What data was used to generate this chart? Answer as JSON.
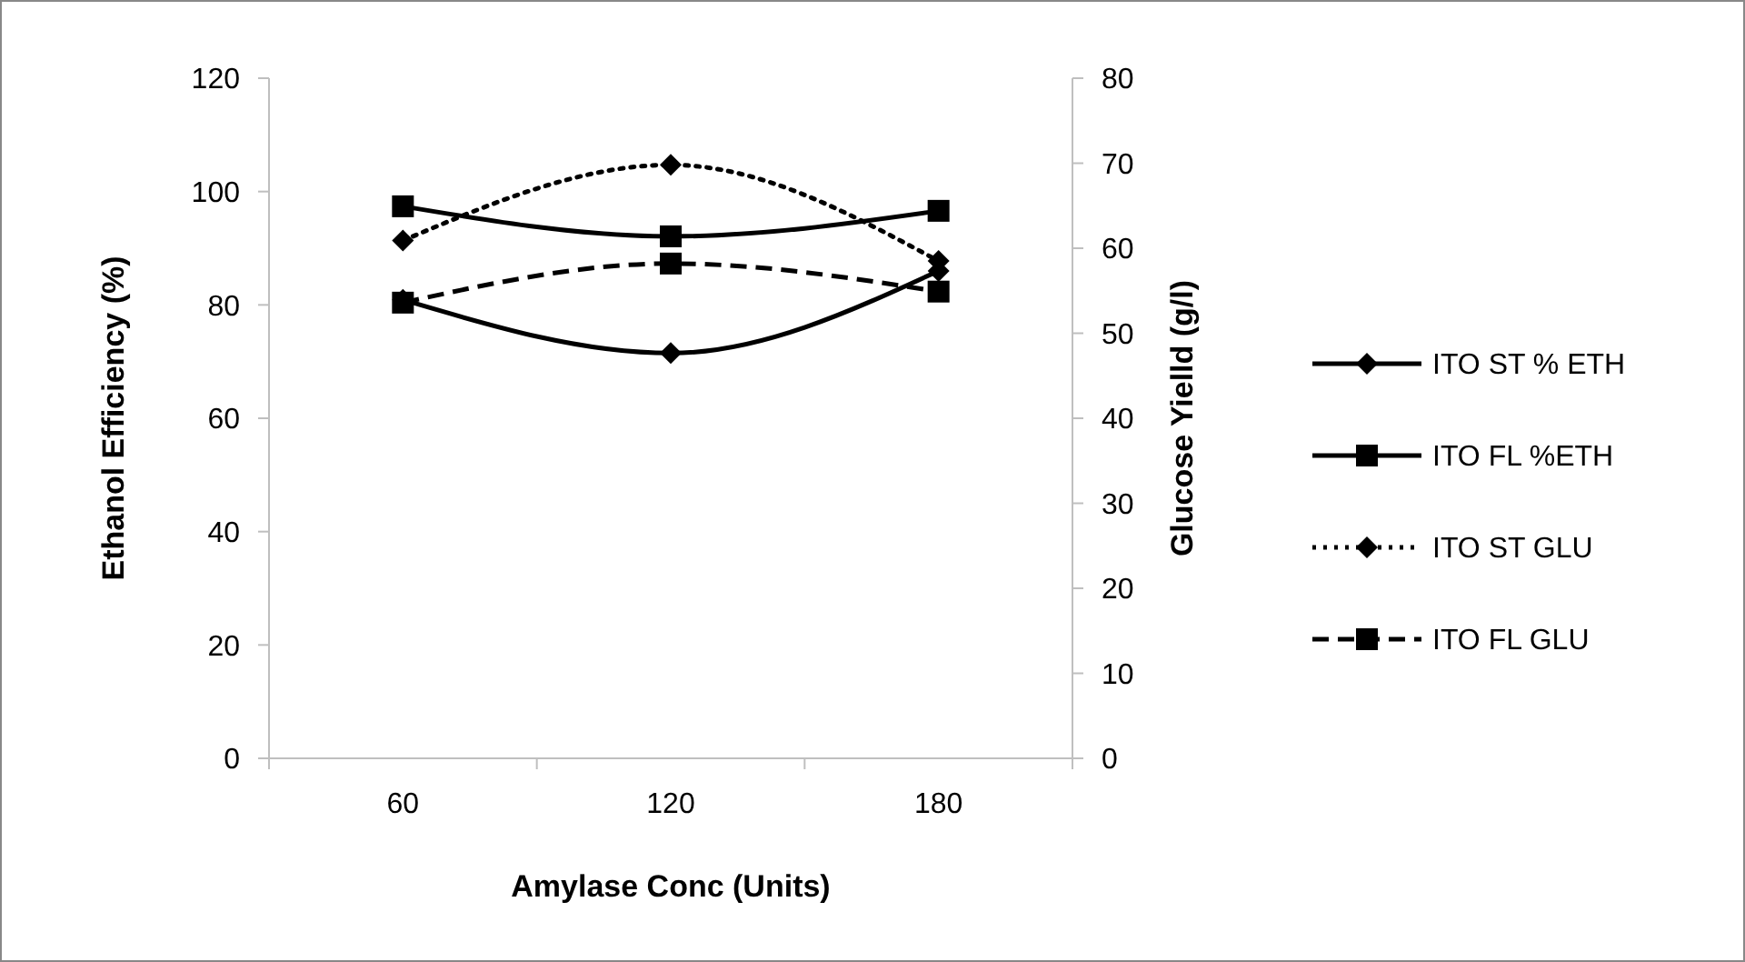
{
  "chart_data": {
    "type": "line",
    "xlabel": "Amylase Conc (Units)",
    "ylabel": "Ethanol Efficiency (%)",
    "y2label": "Glucose Yielld (g/l)",
    "categories": [
      "60",
      "120",
      "180"
    ],
    "series": [
      {
        "name": "ITO ST % ETH",
        "color": "#000000",
        "values": [
          80.9,
          71.5,
          86
        ],
        "marker": "diamond",
        "line_style": "solid"
      },
      {
        "name": "ITO FL %ETH",
        "color": "#000000",
        "values": [
          97.4,
          92.1,
          96.6
        ],
        "marker": "square",
        "line_style": "solid"
      },
      {
        "name": "ITO ST GLU",
        "color": "#000000",
        "values": [
          60.9,
          69.8,
          58.5
        ],
        "marker": "diamond",
        "line_style": "dotted",
        "axis": "y2"
      },
      {
        "name": "ITO FL GLU",
        "color": "#000000",
        "values": [
          53.6,
          58.2,
          54.9
        ],
        "marker": "square",
        "line_style": "dashed",
        "axis": "y2"
      }
    ],
    "ylim": [
      0,
      120
    ],
    "yticks": [
      0,
      20,
      40,
      60,
      80,
      100,
      120
    ],
    "y2lim": [
      0,
      80
    ],
    "y2ticks": [
      0,
      10,
      20,
      30,
      40,
      50,
      60,
      70,
      80
    ],
    "legend": "right",
    "grid": false
  }
}
